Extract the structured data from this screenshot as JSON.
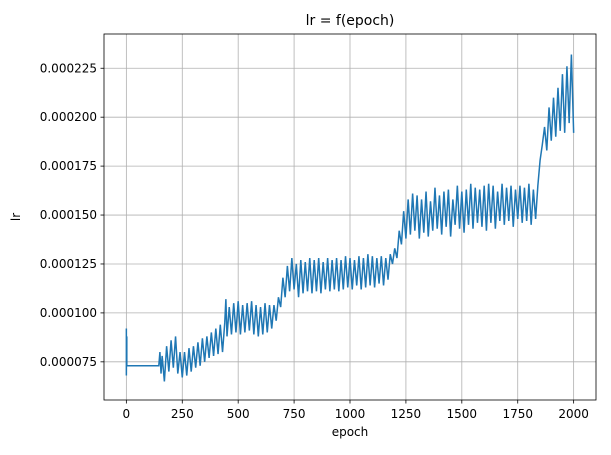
{
  "chart_data": {
    "type": "line",
    "title": "lr = f(epoch)",
    "xlabel": "epoch",
    "ylabel": "lr",
    "grid": true,
    "line_color": "#1f77b4",
    "xlim": [
      -100,
      2100
    ],
    "ylim": [
      5.55e-05,
      0.0002425
    ],
    "xticks": [
      0,
      250,
      500,
      750,
      1000,
      1250,
      1500,
      1750,
      2000
    ],
    "xtick_labels": [
      "0",
      "250",
      "500",
      "750",
      "1000",
      "1250",
      "1500",
      "1750",
      "2000"
    ],
    "yticks": [
      7.5e-05,
      0.0001,
      0.000125,
      0.00015,
      0.000175,
      0.0002,
      0.000225
    ],
    "ytick_labels": [
      "0.000075",
      "0.000100",
      "0.000125",
      "0.000150",
      "0.000175",
      "0.000200",
      "0.000225"
    ],
    "series": [
      {
        "x": [
          0,
          0,
          1,
          1,
          2,
          2,
          3,
          5,
          10,
          30,
          60,
          90,
          120,
          145,
          150,
          155,
          160,
          170,
          180,
          190,
          200,
          210,
          220,
          230,
          240,
          250,
          260,
          270,
          280,
          290,
          300,
          310,
          320,
          330,
          340,
          350,
          360,
          370,
          380,
          390,
          400,
          410,
          420,
          430,
          440,
          445,
          450,
          460,
          470,
          480,
          490,
          500,
          510,
          520,
          530,
          540,
          550,
          560,
          570,
          580,
          590,
          600,
          610,
          620,
          630,
          640,
          650,
          660,
          670,
          680,
          690,
          700,
          710,
          720,
          730,
          740,
          750,
          760,
          770,
          780,
          790,
          800,
          810,
          820,
          830,
          840,
          850,
          860,
          870,
          880,
          890,
          900,
          910,
          920,
          930,
          940,
          950,
          960,
          970,
          980,
          990,
          1000,
          1010,
          1020,
          1030,
          1040,
          1050,
          1060,
          1070,
          1080,
          1090,
          1100,
          1110,
          1120,
          1130,
          1140,
          1150,
          1160,
          1170,
          1180,
          1190,
          1200,
          1210,
          1220,
          1230,
          1240,
          1250,
          1260,
          1270,
          1280,
          1290,
          1300,
          1310,
          1320,
          1330,
          1340,
          1350,
          1360,
          1370,
          1380,
          1390,
          1400,
          1410,
          1420,
          1430,
          1440,
          1450,
          1460,
          1470,
          1480,
          1490,
          1500,
          1510,
          1520,
          1530,
          1540,
          1550,
          1560,
          1570,
          1580,
          1590,
          1600,
          1610,
          1620,
          1630,
          1640,
          1650,
          1660,
          1670,
          1680,
          1690,
          1700,
          1710,
          1720,
          1730,
          1740,
          1750,
          1760,
          1770,
          1780,
          1790,
          1800,
          1810,
          1820,
          1830,
          1840,
          1850,
          1860,
          1870,
          1880,
          1890,
          1900,
          1910,
          1920,
          1930,
          1940,
          1950,
          1960,
          1970,
          1980,
          1990,
          2000
        ],
        "y": [
          9.2e-05,
          6.8e-05,
          8.6e-05,
          7.4e-05,
          8.8e-05,
          7.3e-05,
          7.3e-05,
          7.3e-05,
          7.3e-05,
          7.3e-05,
          7.3e-05,
          7.3e-05,
          7.3e-05,
          7.3e-05,
          8e-05,
          6.9e-05,
          7.8e-05,
          6.5e-05,
          8.3e-05,
          7e-05,
          8.6e-05,
          7.2e-05,
          8.8e-05,
          6.9e-05,
          8e-05,
          6.7e-05,
          8e-05,
          6.8e-05,
          8.2e-05,
          7e-05,
          8.3e-05,
          7.2e-05,
          8.5e-05,
          7.3e-05,
          8.7e-05,
          7.5e-05,
          8.8e-05,
          7.7e-05,
          9e-05,
          7.8e-05,
          9.2e-05,
          7.9e-05,
          9.4e-05,
          8e-05,
          9.5e-05,
          0.000107,
          8.8e-05,
          0.000103,
          8.9e-05,
          0.000105,
          9e-05,
          0.000106,
          8.9e-05,
          0.000104,
          9e-05,
          0.000105,
          9.1e-05,
          0.000106,
          8.9e-05,
          0.000104,
          8.8e-05,
          0.000103,
          8.9e-05,
          0.000105,
          9e-05,
          0.000104,
          9.2e-05,
          0.000104,
          9.6e-05,
          0.000108,
          0.000103,
          0.000118,
          0.000108,
          0.000124,
          0.000111,
          0.000128,
          0.000112,
          0.000125,
          0.000108,
          0.000127,
          0.00011,
          0.000126,
          0.000111,
          0.000128,
          0.00011,
          0.000127,
          0.000111,
          0.000128,
          0.00011,
          0.000126,
          0.000112,
          0.000128,
          0.000111,
          0.000127,
          0.000112,
          0.000128,
          0.000111,
          0.000127,
          0.000112,
          0.000129,
          0.000113,
          0.000128,
          0.000112,
          0.000127,
          0.000114,
          0.000129,
          0.000112,
          0.000128,
          0.000113,
          0.00013,
          0.000114,
          0.000129,
          0.000113,
          0.000128,
          0.000115,
          0.000129,
          0.000114,
          0.000128,
          0.000117,
          0.00013,
          0.000125,
          0.000133,
          0.000128,
          0.000142,
          0.000135,
          0.000152,
          0.000138,
          0.000158,
          0.00014,
          0.000161,
          0.000142,
          0.00016,
          0.000138,
          0.000158,
          0.000141,
          0.000162,
          0.000139,
          0.000157,
          0.000142,
          0.000164,
          0.000143,
          0.00016,
          0.00014,
          0.000162,
          0.000144,
          0.000163,
          0.000139,
          0.000158,
          0.000145,
          0.000165,
          0.000143,
          0.000162,
          0.000141,
          0.000163,
          0.000145,
          0.000166,
          0.000143,
          0.000164,
          0.000146,
          0.000163,
          0.000144,
          0.000165,
          0.000142,
          0.000166,
          0.000146,
          0.000165,
          0.000143,
          0.000162,
          0.000147,
          0.000166,
          0.000145,
          0.000164,
          0.000147,
          0.000165,
          0.000144,
          0.000163,
          0.000148,
          0.000165,
          0.000146,
          0.000164,
          0.000147,
          0.000166,
          0.000145,
          0.000163,
          0.000148,
          0.000165,
          0.000178,
          0.000186,
          0.000195,
          0.000183,
          0.000205,
          0.000188,
          0.00021,
          0.00019,
          0.000215,
          0.000193,
          0.000222,
          0.000192,
          0.000226,
          0.000197,
          0.000232,
          0.000192
        ]
      }
    ]
  }
}
